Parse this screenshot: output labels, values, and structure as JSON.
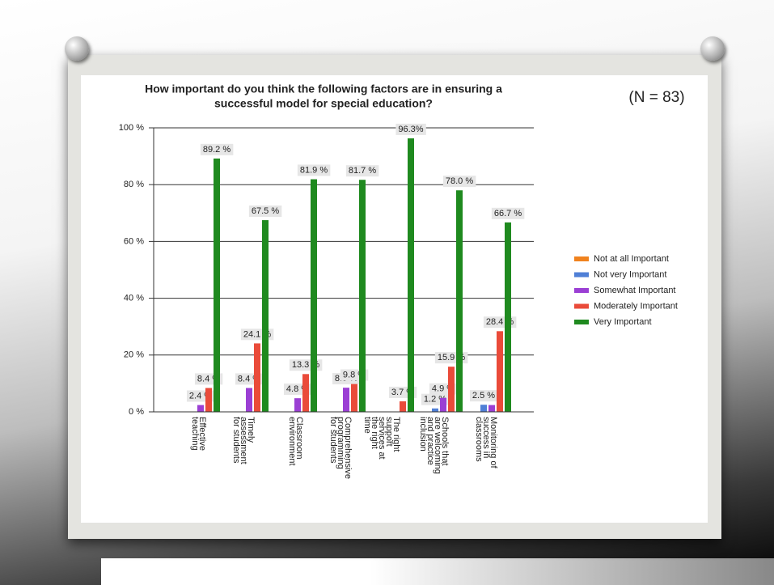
{
  "chart_data": {
    "type": "bar",
    "title": "How important do you think the following factors are in ensuring a",
    "title_line2": "successful model for special education?",
    "annotation": "(N = 83)",
    "categories": [
      "Effective teaching",
      "Timely assessment for students",
      "Classroom environment",
      "Comprehensive programming for students",
      "The right support services at the right time",
      "Schools that are welcoming and practice inclusion",
      "Monitoring of success in classrooms"
    ],
    "series": [
      {
        "name": "Not at all Important",
        "color": "#f0821e",
        "values": [
          0,
          0,
          0,
          0,
          0,
          0,
          0
        ],
        "value_labels": [
          null,
          null,
          null,
          null,
          null,
          null,
          null
        ]
      },
      {
        "name": "Not very Important",
        "color": "#4f7fd6",
        "values": [
          0,
          0,
          0,
          0,
          0,
          1.2,
          2.5
        ],
        "value_labels": [
          null,
          null,
          null,
          null,
          null,
          "1.2 %",
          "2.5 %"
        ]
      },
      {
        "name": "Somewhat Important",
        "color": "#9b3fd4",
        "values": [
          2.4,
          8.4,
          4.8,
          8.5,
          0,
          4.9,
          2.4
        ],
        "value_labels": [
          "2.4 %",
          "8.4 %",
          "4.8 %",
          "8.5 %",
          null,
          "4.9 %",
          null
        ]
      },
      {
        "name": "Moderately Important",
        "color": "#ea4b3a",
        "values": [
          8.4,
          24.1,
          13.3,
          9.8,
          3.7,
          15.9,
          28.4
        ],
        "value_labels": [
          "8.4 %",
          "24.1 %",
          "13.3 %",
          "9.8 %",
          "3.7 %",
          "15.9 %",
          "28.4 %"
        ]
      },
      {
        "name": "Very Important",
        "color": "#1f8a1f",
        "values": [
          89.2,
          67.5,
          81.9,
          81.7,
          96.3,
          78.0,
          66.7
        ],
        "value_labels": [
          "89.2 %",
          "67.5 %",
          "81.9 %",
          "81.7 %",
          "96.3%",
          "78.0 %",
          "66.7 %"
        ]
      }
    ],
    "ylim": [
      0,
      100
    ],
    "yticks": [
      {
        "value": 0,
        "label": "0 %"
      },
      {
        "value": 20,
        "label": "20 %"
      },
      {
        "value": 40,
        "label": "40 %"
      },
      {
        "value": 60,
        "label": "60 %"
      },
      {
        "value": 80,
        "label": "80 %"
      },
      {
        "value": 100,
        "label": "100 %"
      }
    ],
    "grid": true,
    "legend": "right"
  }
}
